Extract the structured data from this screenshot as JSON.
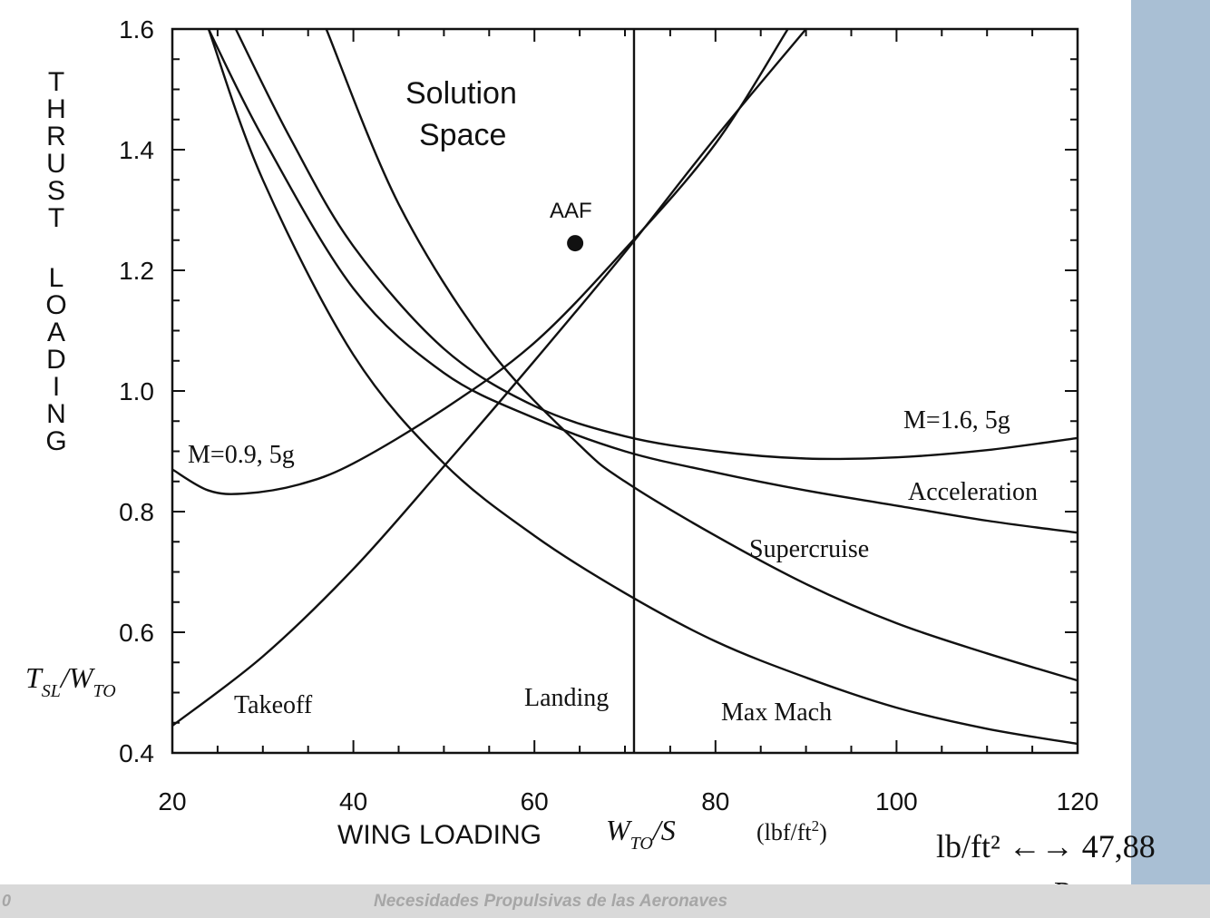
{
  "chart_data": {
    "type": "line",
    "xlabel": "WING LOADING",
    "xlabel_symbol": "W_TO/S",
    "xlabel_units": "(lbf/ft²)",
    "ylabel": "THRUST LOADING",
    "ylabel_symbol": "T_SL/W_TO",
    "xlim": [
      20,
      120
    ],
    "ylim": [
      0.4,
      1.6
    ],
    "x_ticks": [
      "20",
      "40",
      "60",
      "80",
      "100",
      "120"
    ],
    "y_ticks": [
      "0.4",
      "0.6",
      "0.8",
      "1.0",
      "1.2",
      "1.4",
      "1.6"
    ],
    "series": [
      {
        "name": "Takeoff",
        "points": [
          [
            20,
            0.445
          ],
          [
            30,
            0.56
          ],
          [
            40,
            0.705
          ],
          [
            50,
            0.875
          ],
          [
            60,
            1.05
          ],
          [
            70,
            1.23
          ],
          [
            80,
            1.42
          ],
          [
            90,
            1.6
          ]
        ]
      },
      {
        "name": "Landing",
        "vertical_x": 71,
        "points": [
          [
            71,
            0.4
          ],
          [
            71,
            1.6
          ]
        ]
      },
      {
        "name": "Max Mach",
        "points": [
          [
            24,
            1.6
          ],
          [
            30,
            1.35
          ],
          [
            40,
            1.06
          ],
          [
            50,
            0.88
          ],
          [
            60,
            0.76
          ],
          [
            70,
            0.665
          ],
          [
            80,
            0.585
          ],
          [
            90,
            0.525
          ],
          [
            100,
            0.475
          ],
          [
            110,
            0.44
          ],
          [
            120,
            0.415
          ]
        ]
      },
      {
        "name": "Supercruise",
        "points": [
          [
            37,
            1.6
          ],
          [
            45,
            1.31
          ],
          [
            55,
            1.07
          ],
          [
            65,
            0.91
          ],
          [
            70,
            0.85
          ],
          [
            80,
            0.76
          ],
          [
            90,
            0.68
          ],
          [
            100,
            0.615
          ],
          [
            110,
            0.565
          ],
          [
            120,
            0.52
          ]
        ]
      },
      {
        "name": "Acceleration",
        "points": [
          [
            24,
            1.6
          ],
          [
            30,
            1.42
          ],
          [
            40,
            1.17
          ],
          [
            50,
            1.03
          ],
          [
            60,
            0.955
          ],
          [
            70,
            0.9
          ],
          [
            80,
            0.865
          ],
          [
            90,
            0.835
          ],
          [
            100,
            0.81
          ],
          [
            110,
            0.785
          ],
          [
            120,
            0.765
          ]
        ]
      },
      {
        "name": "M=1.6, 5g",
        "points": [
          [
            27,
            1.6
          ],
          [
            33,
            1.42
          ],
          [
            40,
            1.24
          ],
          [
            50,
            1.07
          ],
          [
            60,
            0.975
          ],
          [
            70,
            0.925
          ],
          [
            80,
            0.9
          ],
          [
            90,
            0.888
          ],
          [
            100,
            0.89
          ],
          [
            110,
            0.902
          ],
          [
            120,
            0.922
          ]
        ]
      },
      {
        "name": "M=0.9, 5g",
        "points": [
          [
            20,
            0.87
          ],
          [
            24,
            0.835
          ],
          [
            28,
            0.83
          ],
          [
            34,
            0.845
          ],
          [
            40,
            0.88
          ],
          [
            50,
            0.97
          ],
          [
            60,
            1.08
          ],
          [
            70,
            1.235
          ],
          [
            80,
            1.41
          ],
          [
            88,
            1.6
          ]
        ]
      }
    ],
    "point_annotation": {
      "label": "AAF",
      "x": 64.5,
      "y": 1.245
    },
    "region_label": [
      "Solution",
      "Space"
    ],
    "grid": false,
    "legend": "none"
  },
  "conversion": {
    "line1": "lb/ft² ←→ 47,88",
    "line2": "Pa"
  },
  "footer": {
    "page_number": "0",
    "title": "Necesidades Propulsivas de las Aeronaves"
  }
}
